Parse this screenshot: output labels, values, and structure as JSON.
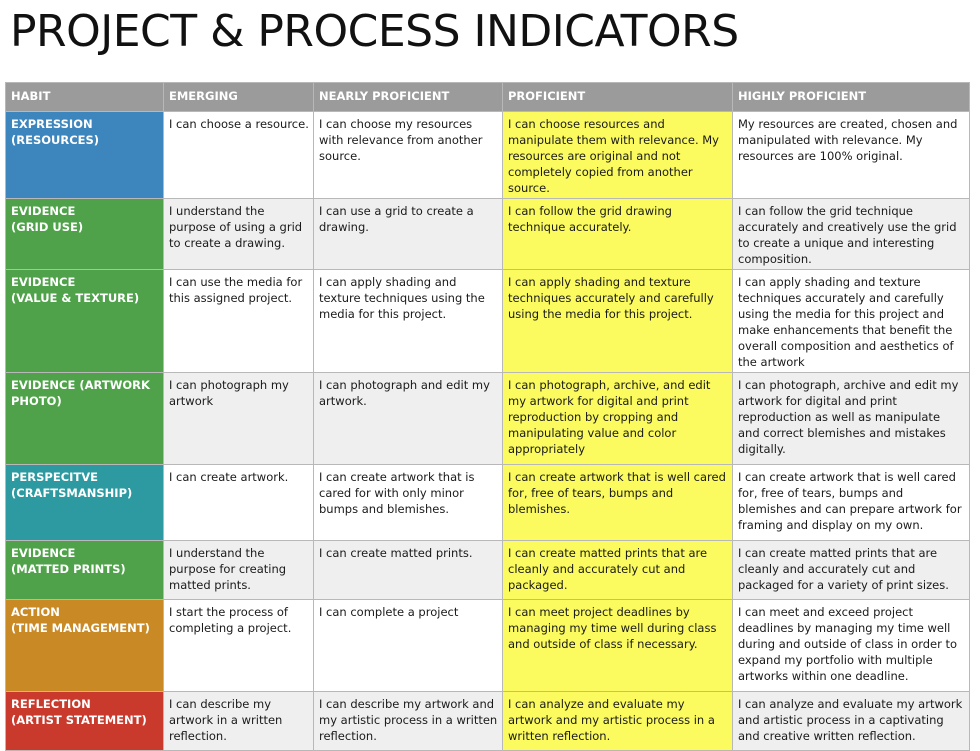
{
  "title": "PROJECT & PROCESS INDICATORS",
  "columns": [
    "HABIT",
    "EMERGING",
    "NEARLY PROFICIENT",
    "PROFICIENT",
    "HIGHLY PROFICIENT"
  ],
  "colors": {
    "header_bg": "#9b9b9b",
    "proficient_highlight": "#fbfb5f",
    "alt_row_bg": "#efefef"
  },
  "rows": [
    {
      "habit": [
        "EXPRESSION",
        "(RESOURCES)"
      ],
      "color": "#3d86bd",
      "emerging": "I can choose a resource.",
      "nearly": "I can choose my resources with relevance from another source.",
      "proficient": "I can choose resources and manipulate them with relevance. My resources are original and not completely copied from another source.",
      "highly": "My resources are created, chosen and manipulated with relevance. My resources are 100% original."
    },
    {
      "habit": [
        "EVIDENCE",
        "(GRID USE)"
      ],
      "color": "#4fa24a",
      "emerging": "I understand the purpose of using a grid to create a drawing.",
      "nearly": "I can use a grid to create a drawing.",
      "proficient": "I can follow the grid drawing technique accurately.",
      "highly": "I can follow the grid technique accurately and creatively use the grid to create a unique and interesting composition."
    },
    {
      "habit": [
        "EVIDENCE",
        "(VALUE & TEXTURE)"
      ],
      "color": "#4fa24a",
      "emerging": "I can use the media for this assigned project.",
      "nearly": "I can apply shading and texture techniques using the media for this project.",
      "proficient": "I can apply shading and texture techniques accurately and carefully using the media for this project.",
      "highly": "I can apply shading and texture techniques accurately and carefully using the media for this project and make enhancements that benefit the overall composition and aesthetics of the artwork"
    },
    {
      "habit": [
        "EVIDENCE (ARTWORK",
        "PHOTO)"
      ],
      "color": "#4fa24a",
      "emerging": "I can photograph my artwork",
      "nearly": "I can photograph and edit my artwork.",
      "proficient": "I can photograph, archive, and edit my artwork for digital and print reproduction by cropping and manipulating value and color appropriately",
      "highly": "I can photograph, archive and edit my artwork for digital and print reproduction as well as manipulate and correct blemishes and mistakes digitally."
    },
    {
      "habit": [
        "PERSPECITVE",
        "(CRAFTSMANSHIP)"
      ],
      "color": "#2c9aa0",
      "emerging": "I can create artwork.",
      "nearly": "I can create artwork that is cared for with only minor bumps and blemishes.",
      "proficient": "I can create artwork that is well cared for, free of tears, bumps and blemishes.",
      "highly": "I can create artwork that is well cared for, free of tears, bumps and blemishes and can prepare artwork for framing and display on my own."
    },
    {
      "habit": [
        "EVIDENCE",
        "(MATTED PRINTS)"
      ],
      "color": "#4fa24a",
      "emerging": "I understand the purpose for creating matted prints.",
      "nearly": "I can create matted prints.",
      "proficient": "I can create matted prints that are cleanly and accurately cut and packaged.",
      "highly": "I can create matted prints that are cleanly and accurately cut and packaged for a variety of print sizes."
    },
    {
      "habit": [
        "ACTION",
        "(TIME MANAGEMENT)"
      ],
      "color": "#c98a25",
      "emerging": "I start the process of completing a project.",
      "nearly": "I can complete a project",
      "proficient": "I can meet project deadlines by managing my time well during class and outside of class if necessary.",
      "highly": "I can meet and exceed project deadlines by managing my time well during and outside of class in order to expand my portfolio with multiple artworks within one deadline."
    },
    {
      "habit": [
        "REFLECTION",
        "(ARTIST STATEMENT)"
      ],
      "color": "#c93a2c",
      "emerging": "I can describe my artwork in a written reflection.",
      "nearly": "I can describe my artwork and my artistic process in a written reflection.",
      "proficient": "I can analyze and evaluate my artwork and my artistic process in a written reflection.",
      "highly": "I can analyze and evaluate my artwork and artistic process in a captivating and creative written reflection."
    }
  ]
}
